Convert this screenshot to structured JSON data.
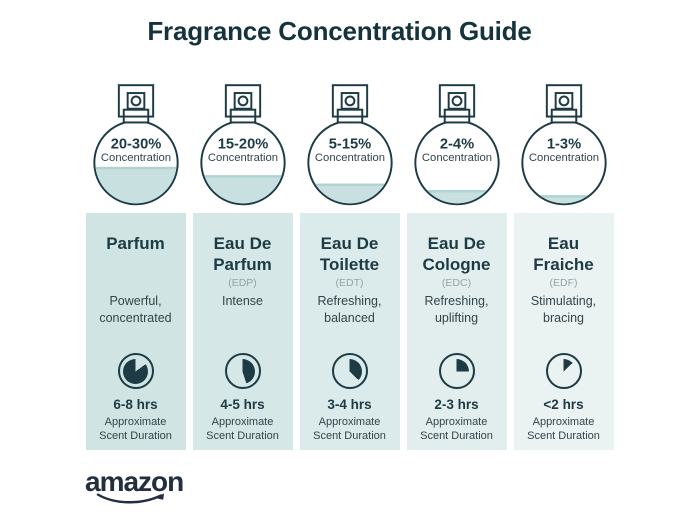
{
  "title": "Fragrance Concentration Guide",
  "colors": {
    "dark": "#1d3b44",
    "title": "#15333d",
    "liquid": "#c9e0e0",
    "liquid_edge": "#afd3d3",
    "abbr": "#93a4a8",
    "text": "#32454b",
    "logo": "#232f3e"
  },
  "columns": [
    {
      "concentration": "20-30%",
      "concentration_label": "Concentration",
      "fill_percent": 45,
      "name": "Parfum",
      "abbr": "",
      "description": "Powerful, concentrated",
      "duration": "6-8 hrs",
      "duration_label": "Approximate Scent Duration",
      "clock_start": 15,
      "clock_end": 100,
      "bg": "#cfe4e3"
    },
    {
      "concentration": "15-20%",
      "concentration_label": "Concentration",
      "fill_percent": 35,
      "name": "Eau De Parfum",
      "abbr": "(EDP)",
      "description": "Intense",
      "duration": "4-5 hrs",
      "duration_label": "Approximate Scent Duration",
      "clock_start": 0,
      "clock_end": 45,
      "bg": "#d5e7e6"
    },
    {
      "concentration": "5-15%",
      "concentration_label": "Concentration",
      "fill_percent": 25,
      "name": "Eau De Toilette",
      "abbr": "(EDT)",
      "description": "Refreshing, balanced",
      "duration": "3-4 hrs",
      "duration_label": "Approximate Scent Duration",
      "clock_start": 0,
      "clock_end": 37,
      "bg": "#dbeaea"
    },
    {
      "concentration": "2-4%",
      "concentration_label": "Concentration",
      "fill_percent": 17,
      "name": "Eau De Cologne",
      "abbr": "(EDC)",
      "description": "Refreshing, uplifting",
      "duration": "2-3 hrs",
      "duration_label": "Approximate Scent Duration",
      "clock_start": 0,
      "clock_end": 25,
      "bg": "#e2eeed"
    },
    {
      "concentration": "1-3%",
      "concentration_label": "Concentration",
      "fill_percent": 11,
      "name": "Eau Fraiche",
      "abbr": "(EDF)",
      "description": "Stimulating, bracing",
      "duration": "<2 hrs",
      "duration_label": "Approximate Scent Duration",
      "clock_start": 0,
      "clock_end": 13,
      "bg": "#ebf2f2"
    }
  ],
  "brand": {
    "logo_text": "amazon"
  }
}
